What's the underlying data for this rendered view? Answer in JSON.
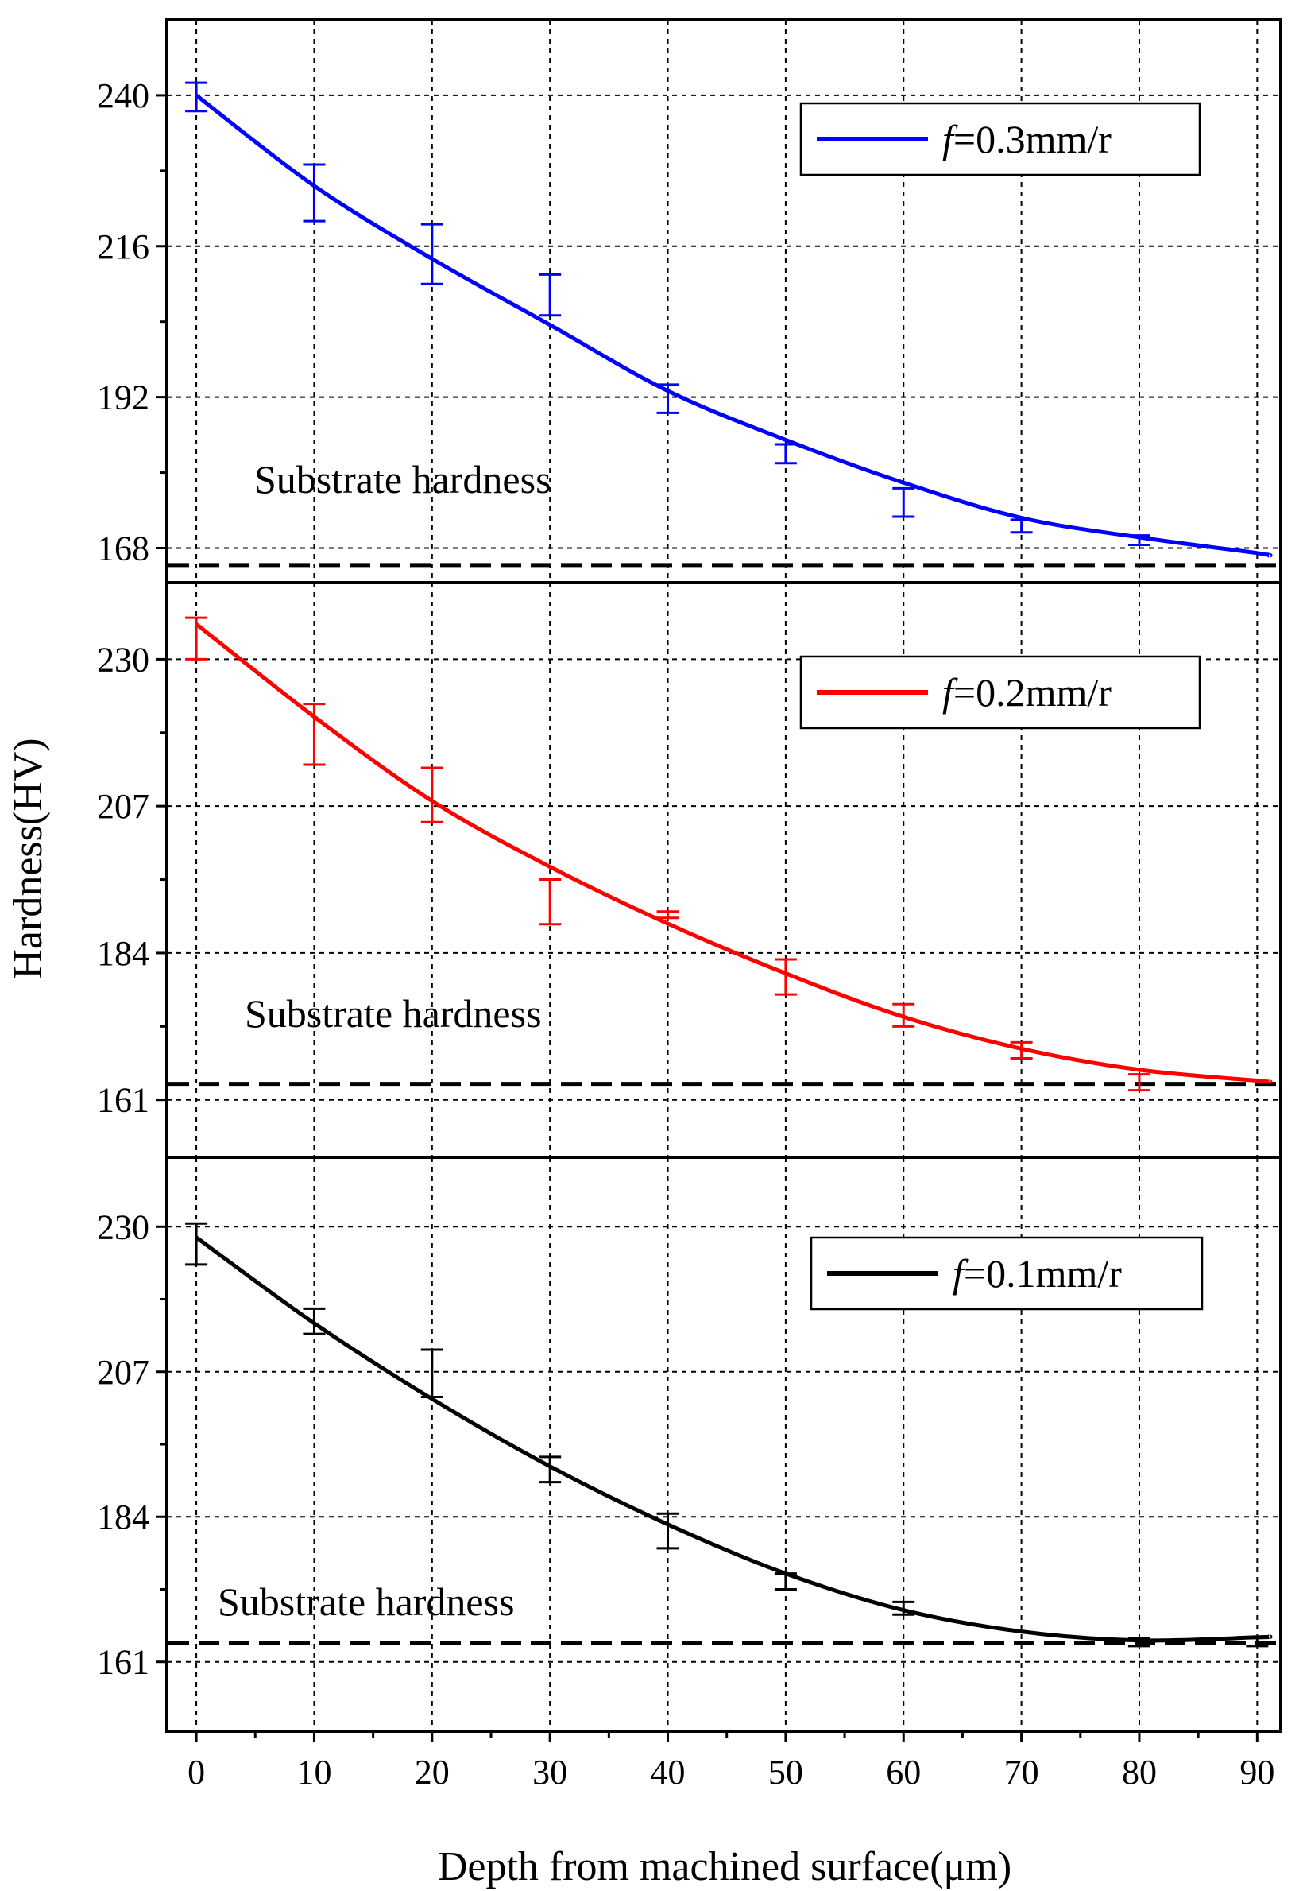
{
  "chart_data": {
    "type": "line",
    "xlabel": "Depth from machined surface(μm)",
    "ylabel": "Hardness(HV)",
    "xlim": [
      -2.5,
      92
    ],
    "x_ticks": [
      0,
      10,
      20,
      30,
      40,
      50,
      60,
      70,
      80,
      90
    ],
    "x_tick_labels": [
      "0",
      "10",
      "20",
      "30",
      "40",
      "50",
      "60",
      "70",
      "80",
      "90"
    ],
    "grid": true,
    "panels": [
      {
        "legend_prefix": "f",
        "legend_suffix": "=0.3mm/r",
        "color": "#0000ff",
        "ylim": [
          162.5,
          252
        ],
        "y_ticks": [
          168,
          192,
          216,
          240
        ],
        "y_tick_labels": [
          "168",
          "192",
          "216",
          "240"
        ],
        "x": [
          0,
          10,
          20,
          30,
          40,
          50,
          60,
          70,
          80,
          90
        ],
        "values": [
          240,
          226,
          215,
          204,
          193,
          184,
          177,
          172,
          169,
          167.5
        ],
        "errors": [
          [
            237.5,
            242
          ],
          [
            220,
            229
          ],
          [
            210,
            219.5
          ],
          [
            205,
            211.5
          ],
          [
            189.5,
            194
          ],
          [
            181.5,
            184.5
          ],
          [
            173,
            177.5
          ],
          [
            170.5,
            172.5
          ],
          [
            168.5,
            170
          ],
          [
            null,
            null
          ]
        ],
        "fit": [
          240,
          225.6,
          214,
          203.5,
          193,
          185.2,
          178.4,
          172.8,
          169.7,
          167.2,
          166.8
        ],
        "fit_x": [
          0,
          10,
          20,
          30,
          40,
          50,
          60,
          70,
          80,
          90,
          91
        ],
        "substrate": 165.3,
        "substrate_label": "Substrate hardness"
      },
      {
        "legend_prefix": "f",
        "legend_suffix": "=0.2mm/r",
        "color": "#ff0000",
        "ylim": [
          152,
          242
        ],
        "y_ticks": [
          161,
          184,
          207,
          230
        ],
        "y_tick_labels": [
          "161",
          "184",
          "207",
          "230"
        ],
        "x": [
          0,
          10,
          20,
          30,
          40,
          50,
          60,
          70,
          80,
          90
        ],
        "values": [
          233,
          219,
          208,
          192,
          190,
          180.5,
          174,
          169,
          164,
          164
        ],
        "errors": [
          [
            230,
            236.5
          ],
          [
            213.5,
            223
          ],
          [
            204.5,
            213
          ],
          [
            188.5,
            195.5
          ],
          [
            189.5,
            190.5
          ],
          [
            177.5,
            183
          ],
          [
            172.5,
            176
          ],
          [
            167.5,
            170
          ],
          [
            162.5,
            165
          ],
          [
            null,
            null
          ]
        ],
        "fit": [
          235.5,
          221,
          207.8,
          197.5,
          188.6,
          180.8,
          174,
          169,
          165.7,
          164,
          163.8
        ],
        "fit_x": [
          0,
          10,
          20,
          30,
          40,
          50,
          60,
          70,
          80,
          90,
          91
        ],
        "substrate": 163.5,
        "substrate_label": "Substrate hardness"
      },
      {
        "legend_prefix": "f",
        "legend_suffix": "=0.1mm/r",
        "color": "#000000",
        "ylim": [
          150,
          241
        ],
        "y_ticks": [
          161,
          184,
          207,
          230
        ],
        "y_tick_labels": [
          "161",
          "184",
          "207",
          "230"
        ],
        "x": [
          0,
          10,
          20,
          30,
          40,
          50,
          60,
          70,
          80,
          90
        ],
        "values": [
          228,
          215,
          203,
          191.5,
          181.5,
          174,
          169.5,
          166,
          164.5,
          164.5
        ],
        "errors": [
          [
            224,
            230.5
          ],
          [
            213,
            217
          ],
          [
            203,
            210.5
          ],
          [
            189.5,
            193.5
          ],
          [
            179,
            184.5
          ],
          [
            172.5,
            175
          ],
          [
            168.5,
            170.5
          ],
          [
            null,
            null
          ],
          [
            163.5,
            164.8
          ],
          [
            163.5,
            164.8
          ]
        ],
        "fit": [
          228.3,
          214.7,
          202.7,
          192,
          182.8,
          175,
          169.2,
          165.8,
          164.4,
          164.9,
          165
        ],
        "fit_x": [
          0,
          10,
          20,
          30,
          40,
          50,
          60,
          70,
          80,
          90,
          91
        ],
        "substrate": 164,
        "substrate_label": "Substrate hardness"
      }
    ]
  }
}
